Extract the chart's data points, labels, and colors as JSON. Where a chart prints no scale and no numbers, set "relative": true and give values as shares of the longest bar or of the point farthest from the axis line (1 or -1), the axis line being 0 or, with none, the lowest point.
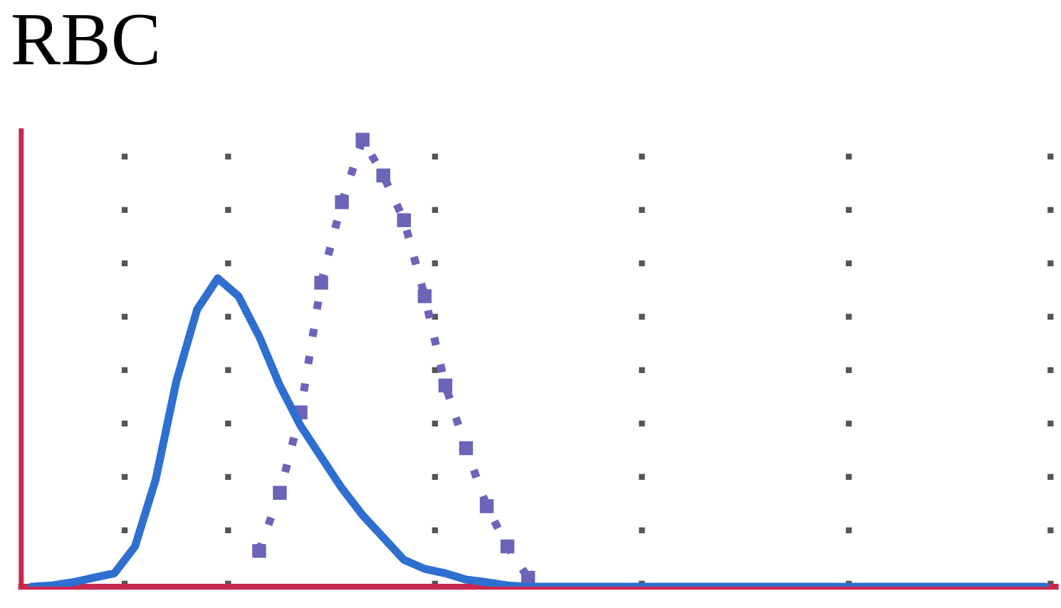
{
  "chart_data": {
    "type": "line",
    "title": "RBC",
    "relative": true,
    "categories": [
      null,
      null,
      null,
      null,
      null,
      null,
      null,
      null,
      null,
      null,
      null,
      null,
      null,
      null,
      null,
      null,
      null,
      null,
      null,
      null,
      null,
      null,
      null,
      null,
      null,
      null,
      null,
      null,
      null,
      null,
      null,
      null,
      null,
      null,
      null,
      null,
      null,
      null,
      null,
      null,
      null,
      null,
      null,
      null,
      null,
      null,
      null,
      null,
      null,
      null
    ],
    "series": [
      {
        "color": "#6b64b8",
        "line_style": "dotted",
        "marker": "square",
        "values": [
          null,
          null,
          null,
          null,
          null,
          null,
          null,
          null,
          null,
          null,
          null,
          0.08,
          0.21,
          0.39,
          0.68,
          0.86,
          1,
          0.92,
          0.82,
          0.65,
          0.45,
          0.31,
          0.18,
          0.09,
          0.02,
          null,
          null,
          null,
          null,
          null,
          null,
          null,
          null,
          null,
          null,
          null,
          null,
          null,
          null,
          null,
          null,
          null,
          null,
          null,
          null,
          null,
          null,
          null,
          null,
          null
        ]
      },
      {
        "type": "line",
        "color": "#2e6fd0",
        "values": [
          0,
          0.003,
          0.01,
          0.02,
          0.03,
          0.09,
          0.24,
          0.46,
          0.62,
          0.69,
          0.65,
          0.56,
          0.45,
          0.36,
          0.29,
          0.22,
          0.16,
          0.11,
          0.06,
          0.04,
          0.03,
          0.016,
          0.01,
          0.003,
          0,
          0,
          0,
          0,
          0,
          0,
          0,
          0,
          0,
          0,
          0,
          0,
          0,
          0,
          0,
          0,
          0,
          0,
          0,
          0,
          0,
          0,
          0,
          0,
          0,
          0
        ]
      }
    ]
  }
}
